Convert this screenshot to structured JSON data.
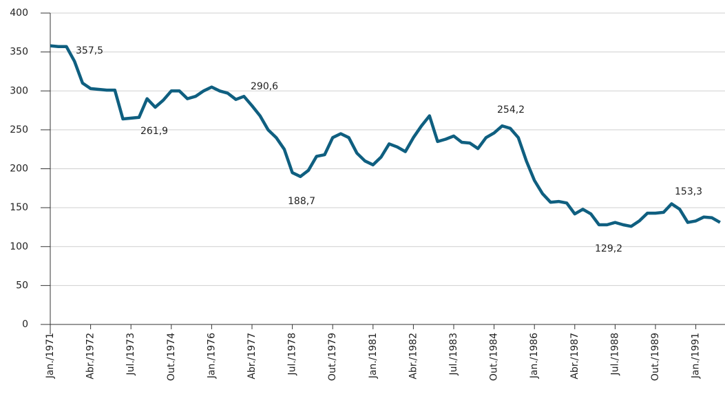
{
  "chart_data": {
    "type": "line",
    "categories": [
      "Jan./1971",
      null,
      null,
      null,
      null,
      "Abr./1972",
      null,
      null,
      null,
      null,
      "Jul./1973",
      null,
      null,
      null,
      null,
      "Out./1974",
      null,
      null,
      null,
      null,
      "Jan./1976",
      null,
      null,
      null,
      null,
      "Abr./1977",
      null,
      null,
      null,
      null,
      "Jul./1978",
      null,
      null,
      null,
      null,
      "Out./1979",
      null,
      null,
      null,
      null,
      "Jan./1981",
      null,
      null,
      null,
      null,
      "Abr./1982",
      null,
      null,
      null,
      null,
      "Jul./1983",
      null,
      null,
      null,
      null,
      "Out./1984",
      null,
      null,
      null,
      null,
      "Jan./1986",
      null,
      null,
      null,
      null,
      "Abr./1987",
      null,
      null,
      null,
      null,
      "Jul./1988",
      null,
      null,
      null,
      null,
      "Out./1989",
      null,
      null,
      null,
      null,
      "Jan./1991",
      null,
      null,
      null
    ],
    "series": [
      {
        "color": "#0f5f80",
        "values": [
          358,
          357,
          357,
          338,
          310,
          303,
          302,
          301,
          301,
          264,
          265,
          266,
          290,
          279,
          288,
          300,
          300,
          290,
          293,
          300,
          305,
          300,
          297,
          289,
          293,
          281,
          268,
          250,
          240,
          225,
          195,
          190,
          198,
          216,
          218,
          240,
          245,
          240,
          220,
          210,
          205,
          215,
          232,
          228,
          222,
          240,
          255,
          268,
          235,
          238,
          242,
          234,
          233,
          226,
          240,
          246,
          255,
          252,
          240,
          210,
          185,
          168,
          157,
          158,
          156,
          142,
          148,
          142,
          128,
          128,
          131,
          128,
          126,
          133,
          143,
          143,
          144,
          155,
          148,
          131,
          133,
          138,
          137,
          131
        ]
      }
    ],
    "annotations": [
      "357,5",
      "261,9",
      "290,6",
      "188,7",
      "254,2",
      "129,2",
      "153,3"
    ],
    "ylim": [
      0,
      400
    ],
    "yticks": [
      0,
      50,
      100,
      150,
      200,
      250,
      300,
      350,
      400
    ],
    "grid": true
  }
}
